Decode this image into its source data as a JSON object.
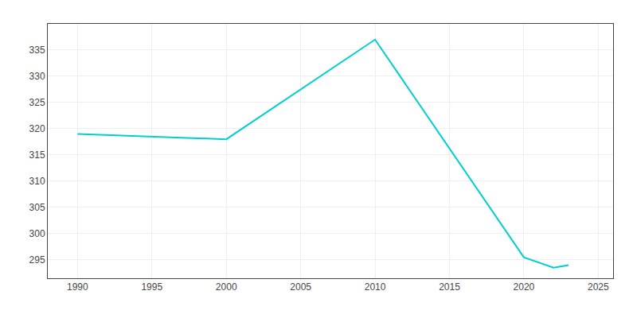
{
  "chart_data": {
    "type": "line",
    "x": [
      1990,
      1995,
      2000,
      2010,
      2020,
      2022,
      2023
    ],
    "values": [
      319.0,
      318.5,
      318.0,
      337.0,
      295.5,
      293.5,
      294.0
    ],
    "color": "#00CED1",
    "xlim": [
      1988,
      2026
    ],
    "ylim": [
      291.5,
      340
    ],
    "xticks": [
      1990,
      1995,
      2000,
      2005,
      2010,
      2015,
      2020,
      2025
    ],
    "yticks": [
      295,
      300,
      305,
      310,
      315,
      320,
      325,
      330,
      335
    ],
    "grid": true
  }
}
